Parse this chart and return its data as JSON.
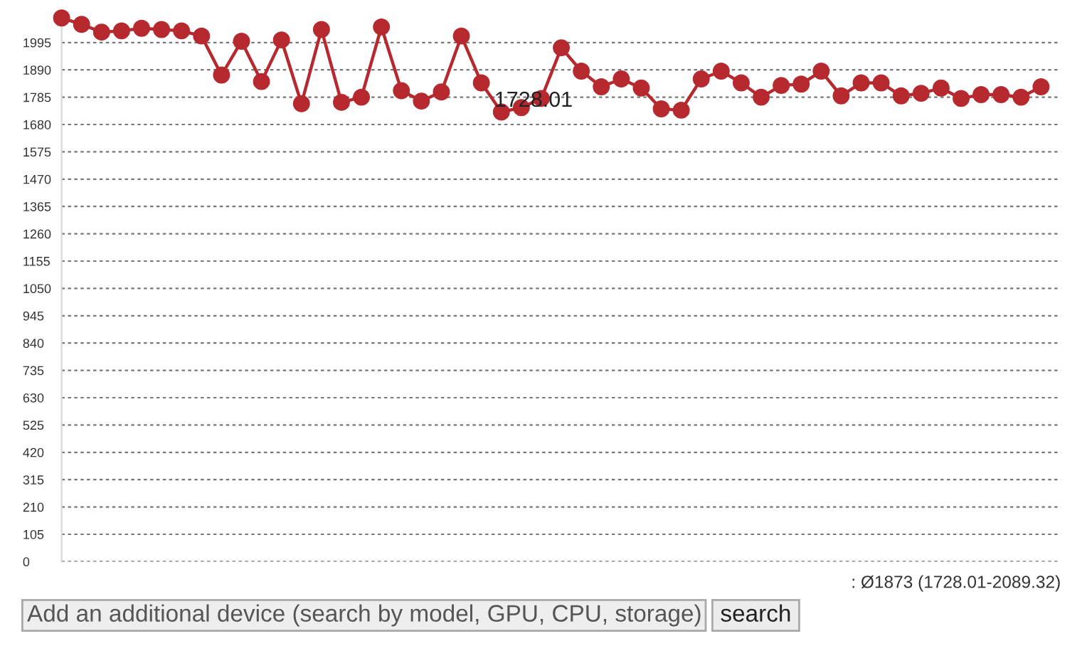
{
  "chart_data": {
    "type": "line",
    "categories": [
      null,
      null,
      null,
      null,
      null,
      null,
      null,
      null,
      null,
      null,
      null,
      null,
      null,
      null,
      null,
      null,
      null,
      null,
      null,
      null,
      null,
      null,
      null,
      null,
      null,
      null,
      null,
      null,
      null,
      null,
      null,
      null,
      null,
      null,
      null,
      null,
      null,
      null,
      null,
      null,
      null,
      null,
      null,
      null,
      null,
      null,
      null,
      null,
      null,
      null
    ],
    "values": [
      2089.32,
      2065,
      2035,
      2040,
      2050,
      2045,
      2040,
      2020,
      1870,
      2000,
      1845,
      2005,
      1760,
      2045,
      1765,
      1785,
      2055,
      1810,
      1770,
      1805,
      2020,
      1840,
      1728.01,
      1745,
      1780,
      1975,
      1885,
      1825,
      1855,
      1820,
      1740,
      1735,
      1855,
      1885,
      1840,
      1785,
      1830,
      1835,
      1885,
      1790,
      1840,
      1840,
      1790,
      1800,
      1820,
      1780,
      1795,
      1795,
      1785,
      1825
    ],
    "value_labels": [
      null,
      null,
      null,
      null,
      null,
      null,
      null,
      null,
      null,
      null,
      null,
      null,
      null,
      null,
      null,
      null,
      null,
      null,
      null,
      null,
      null,
      null,
      "1728.01",
      null,
      null,
      null,
      null,
      null,
      null,
      null,
      null,
      null,
      null,
      null,
      null,
      null,
      null,
      null,
      null,
      null,
      null,
      null,
      null,
      null,
      null,
      null,
      null,
      null,
      null,
      null
    ],
    "color": "#b5292f",
    "marker": "circle",
    "line_style": "solid",
    "ylim": [
      0,
      2100
    ],
    "yticks": [
      0,
      105,
      210,
      315,
      420,
      525,
      630,
      735,
      840,
      945,
      1050,
      1155,
      1260,
      1365,
      1470,
      1575,
      1680,
      1785,
      1890,
      1995
    ],
    "grid": "y",
    "tick_labels": "y",
    "annotations": [
      ": Ø1873 (1728.01-2089.32)",
      "Add an additional device (search by model, GPU, CPU, storage)",
      "search"
    ]
  }
}
